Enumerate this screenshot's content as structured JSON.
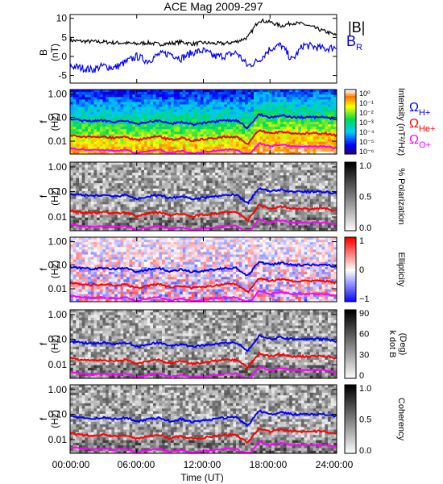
{
  "title": "ACE Mag 2009-297",
  "colors": {
    "total_field": "#000000",
    "radial_field": "#0000ff",
    "gyro_h": "#0000ff",
    "gyro_he": "#ff0000",
    "gyro_o": "#ff00ff"
  },
  "legend": {
    "total_label": "|B|",
    "radial_label": "B",
    "radial_sub": "R",
    "h_label": "Ω",
    "h_sub": "H+",
    "he_label": "Ω",
    "he_sub": "He+",
    "o_label": "Ω",
    "o_sub": "O+"
  },
  "xaxis": {
    "label": "Time (UT)",
    "ticks": [
      "00:00:00",
      "06:00:00",
      "12:00:00",
      "18:00:00",
      "24:00:00"
    ]
  },
  "chart_data": [
    {
      "type": "line",
      "panel": "field",
      "ylabel_top": "B",
      "ylabel_bottom": "(nT)",
      "ylim": [
        -7,
        11
      ],
      "yticks": [
        "10",
        "5",
        "0",
        "-5"
      ],
      "x_hours": [
        0,
        1,
        2,
        3,
        4,
        5,
        6,
        7,
        8,
        9,
        10,
        11,
        12,
        13,
        14,
        15,
        16,
        17,
        18,
        19,
        20,
        21,
        22,
        23,
        24
      ],
      "series": [
        {
          "name": "|B|",
          "values": [
            4.2,
            4.0,
            3.9,
            3.8,
            3.6,
            3.5,
            3.3,
            3.6,
            3.2,
            3.4,
            3.8,
            3.3,
            3.6,
            3.4,
            3.4,
            3.9,
            5.0,
            9.5,
            9.0,
            8.0,
            8.8,
            8.5,
            7.5,
            6.5,
            5.5
          ]
        },
        {
          "name": "B_R",
          "values": [
            -2.5,
            -3.0,
            -3.5,
            -2.5,
            -3.0,
            -1.5,
            0.0,
            -1.2,
            0.5,
            0.8,
            -0.5,
            1.0,
            1.5,
            0.0,
            0.2,
            1.0,
            -2.5,
            -1.0,
            2.0,
            3.0,
            -1.0,
            3.0,
            2.5,
            2.0,
            2.5
          ]
        }
      ]
    },
    {
      "type": "heatmap",
      "panel": "intensity",
      "ylabel_top": "f",
      "ylabel_bottom": "(Hz)",
      "yscale": "log",
      "yticks": [
        "1.00",
        "0.10",
        "0.01"
      ],
      "colorbar_label": "Intensity (nT²/Hz)",
      "colorbar_ticks": [
        "10⁰",
        "10⁻¹",
        "10⁻²",
        "10⁻³",
        "10⁻⁴",
        "10⁻⁵",
        "10⁻⁶"
      ]
    },
    {
      "type": "heatmap",
      "panel": "polarization",
      "ylabel_top": "f",
      "ylabel_bottom": "(Hz)",
      "yscale": "log",
      "yticks": [
        "1.00",
        "0.10",
        "0.01"
      ],
      "colorbar_label": "% Polarization",
      "colorbar_ticks": [
        "1.0",
        "0.5",
        "0.0"
      ]
    },
    {
      "type": "heatmap",
      "panel": "ellipticity",
      "ylabel_top": "f",
      "ylabel_bottom": "(Hz)",
      "yscale": "log",
      "yticks": [
        "1.00",
        "0.10",
        "0.01"
      ],
      "colorbar_label": "Ellipticity",
      "colorbar_ticks": [
        "1",
        "0",
        "−1"
      ]
    },
    {
      "type": "heatmap",
      "panel": "kdotb",
      "ylabel_top": "f",
      "ylabel_bottom": "(Hz)",
      "yscale": "log",
      "yticks": [
        "1.00",
        "0.10",
        "0.01"
      ],
      "colorbar_label_1": "k dot B",
      "colorbar_label_2": "(Deg)",
      "colorbar_ticks": [
        "90",
        "60",
        "30",
        "0"
      ]
    },
    {
      "type": "heatmap",
      "panel": "coherency",
      "ylabel_top": "f",
      "ylabel_bottom": "(Hz)",
      "yscale": "log",
      "yticks": [
        "1.00",
        "0.10",
        "0.01"
      ],
      "colorbar_label": "Coherency",
      "colorbar_ticks": [
        "1.0",
        "0.5",
        "0.0"
      ]
    }
  ]
}
